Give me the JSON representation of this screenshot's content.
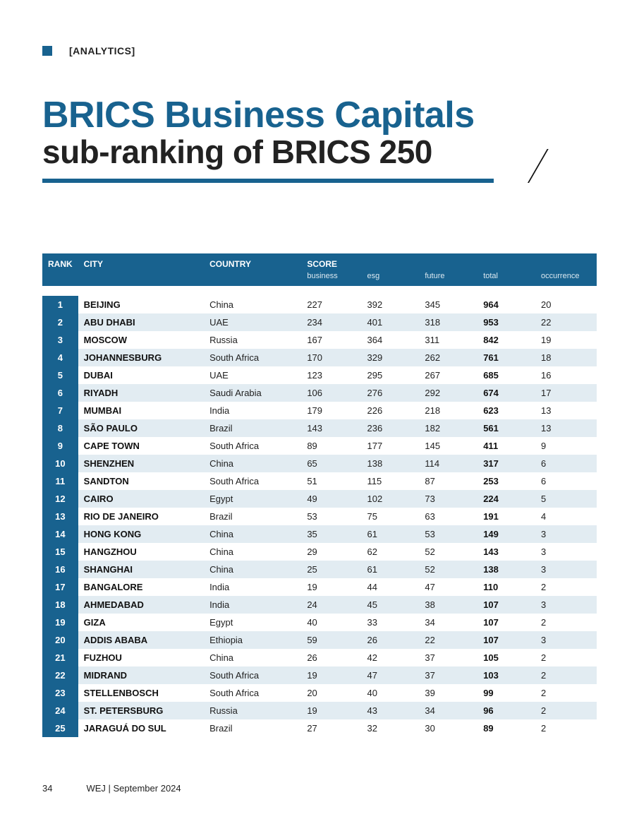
{
  "section_label": "[ANALYTICS]",
  "title": {
    "line1": "BRICS Business Capitals",
    "line2": "sub-ranking of BRICS 250"
  },
  "colors": {
    "accent": "#18628f",
    "row_even_bg": "#e2ecf2",
    "row_odd_bg": "#ffffff",
    "text": "#222222"
  },
  "table": {
    "columns": {
      "rank": "RANK",
      "city": "CITY",
      "country": "COUNTRY",
      "score": "SCORE",
      "sub": {
        "business": "business",
        "esg": "esg",
        "future": "future",
        "total": "total",
        "occurrence": "occurrence"
      }
    },
    "rows": [
      {
        "rank": "1",
        "city": "BEIJING",
        "country": "China",
        "business": "227",
        "esg": "392",
        "future": "345",
        "total": "964",
        "occurrence": "20"
      },
      {
        "rank": "2",
        "city": "ABU DHABI",
        "country": "UAE",
        "business": "234",
        "esg": "401",
        "future": "318",
        "total": "953",
        "occurrence": "22"
      },
      {
        "rank": "3",
        "city": "MOSCOW",
        "country": "Russia",
        "business": "167",
        "esg": "364",
        "future": "311",
        "total": "842",
        "occurrence": "19"
      },
      {
        "rank": "4",
        "city": "JOHANNESBURG",
        "country": "South Africa",
        "business": "170",
        "esg": "329",
        "future": "262",
        "total": "761",
        "occurrence": "18"
      },
      {
        "rank": "5",
        "city": "DUBAI",
        "country": "UAE",
        "business": "123",
        "esg": "295",
        "future": "267",
        "total": "685",
        "occurrence": "16"
      },
      {
        "rank": "6",
        "city": "RIYADH",
        "country": "Saudi Arabia",
        "business": "106",
        "esg": "276",
        "future": "292",
        "total": "674",
        "occurrence": "17"
      },
      {
        "rank": "7",
        "city": "MUMBAI",
        "country": "India",
        "business": "179",
        "esg": "226",
        "future": "218",
        "total": "623",
        "occurrence": "13"
      },
      {
        "rank": "8",
        "city": "SÃO PAULO",
        "country": "Brazil",
        "business": "143",
        "esg": "236",
        "future": "182",
        "total": "561",
        "occurrence": "13"
      },
      {
        "rank": "9",
        "city": "CAPE TOWN",
        "country": "South Africa",
        "business": "89",
        "esg": "177",
        "future": "145",
        "total": "411",
        "occurrence": "9"
      },
      {
        "rank": "10",
        "city": "SHENZHEN",
        "country": "China",
        "business": "65",
        "esg": "138",
        "future": "114",
        "total": "317",
        "occurrence": "6"
      },
      {
        "rank": "11",
        "city": "SANDTON",
        "country": "South Africa",
        "business": "51",
        "esg": "115",
        "future": "87",
        "total": "253",
        "occurrence": "6"
      },
      {
        "rank": "12",
        "city": "CAIRO",
        "country": "Egypt",
        "business": "49",
        "esg": "102",
        "future": "73",
        "total": "224",
        "occurrence": "5"
      },
      {
        "rank": "13",
        "city": "RIO DE JANEIRO",
        "country": "Brazil",
        "business": "53",
        "esg": "75",
        "future": "63",
        "total": "191",
        "occurrence": "4"
      },
      {
        "rank": "14",
        "city": "HONG KONG",
        "country": "China",
        "business": "35",
        "esg": "61",
        "future": "53",
        "total": "149",
        "occurrence": "3"
      },
      {
        "rank": "15",
        "city": "HANGZHOU",
        "country": "China",
        "business": "29",
        "esg": "62",
        "future": "52",
        "total": "143",
        "occurrence": "3"
      },
      {
        "rank": "16",
        "city": "SHANGHAI",
        "country": "China",
        "business": "25",
        "esg": "61",
        "future": "52",
        "total": "138",
        "occurrence": "3"
      },
      {
        "rank": "17",
        "city": "BANGALORE",
        "country": "India",
        "business": "19",
        "esg": "44",
        "future": "47",
        "total": "110",
        "occurrence": "2"
      },
      {
        "rank": "18",
        "city": "AHMEDABAD",
        "country": "India",
        "business": "24",
        "esg": "45",
        "future": "38",
        "total": "107",
        "occurrence": "3"
      },
      {
        "rank": "19",
        "city": "GIZA",
        "country": "Egypt",
        "business": "40",
        "esg": "33",
        "future": "34",
        "total": "107",
        "occurrence": "2"
      },
      {
        "rank": "20",
        "city": "ADDIS ABABA",
        "country": "Ethiopia",
        "business": "59",
        "esg": "26",
        "future": "22",
        "total": "107",
        "occurrence": "3"
      },
      {
        "rank": "21",
        "city": "FUZHOU",
        "country": "China",
        "business": "26",
        "esg": "42",
        "future": "37",
        "total": "105",
        "occurrence": "2"
      },
      {
        "rank": "22",
        "city": "MIDRAND",
        "country": "South Africa",
        "business": "19",
        "esg": "47",
        "future": "37",
        "total": "103",
        "occurrence": "2"
      },
      {
        "rank": "23",
        "city": "STELLENBOSCH",
        "country": "South Africa",
        "business": "20",
        "esg": "40",
        "future": "39",
        "total": "99",
        "occurrence": "2"
      },
      {
        "rank": "24",
        "city": "ST. PETERSBURG",
        "country": "Russia",
        "business": "19",
        "esg": "43",
        "future": "34",
        "total": "96",
        "occurrence": "2"
      },
      {
        "rank": "25",
        "city": "JARAGUÁ DO SUL",
        "country": "Brazil",
        "business": "27",
        "esg": "32",
        "future": "30",
        "total": "89",
        "occurrence": "2"
      }
    ]
  },
  "footer": {
    "page_number": "34",
    "publication": "WEJ | September 2024"
  }
}
